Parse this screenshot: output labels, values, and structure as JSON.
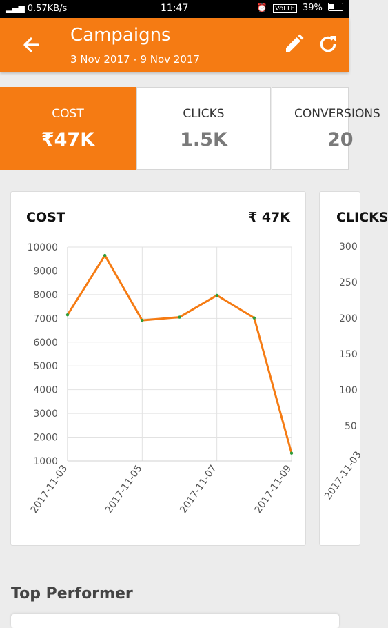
{
  "status_bar": {
    "network": "0.57KB/s",
    "time": "11:47",
    "lte": "VoLTE",
    "battery": "39%"
  },
  "header": {
    "title": "Campaigns",
    "date_range": "3 Nov 2017 - 9 Nov 2017",
    "back_icon": "arrow-back-icon",
    "edit_icon": "pencil-icon",
    "refresh_icon": "refresh-icon"
  },
  "metrics": [
    {
      "label": "COST",
      "value": "₹47K",
      "active": true
    },
    {
      "label": "CLICKS",
      "value": "1.5K",
      "active": false
    },
    {
      "label": "CONVERSIONS",
      "value": "20",
      "active": false
    }
  ],
  "cost_card": {
    "title": "COST",
    "value": "₹ 47K"
  },
  "second_card": {
    "title": "CLICKS",
    "y_ticks": [
      "300",
      "250",
      "200",
      "150",
      "100",
      "50"
    ],
    "x_first": "2017-11-03"
  },
  "chart_data": {
    "type": "line",
    "title": "COST",
    "x": [
      "2017-11-03",
      "2017-11-04",
      "2017-11-05",
      "2017-11-06",
      "2017-11-07",
      "2017-11-08",
      "2017-11-09"
    ],
    "x_tick_labels": [
      "2017-11-03",
      "2017-11-05",
      "2017-11-07",
      "2017-11-09"
    ],
    "y_tick_labels": [
      "10000",
      "9000",
      "8000",
      "7000",
      "6000",
      "5000",
      "4000",
      "3000",
      "2000",
      "1000"
    ],
    "values": [
      7150,
      9650,
      6920,
      7050,
      7970,
      7020,
      1330
    ],
    "ylim": [
      1000,
      10000
    ],
    "grid": true,
    "line_color": "#f57b13",
    "point_color": "#2e9c3a"
  },
  "section": {
    "top_performer": "Top Performer"
  },
  "colors": {
    "accent": "#f57b13",
    "background": "#ececec"
  }
}
